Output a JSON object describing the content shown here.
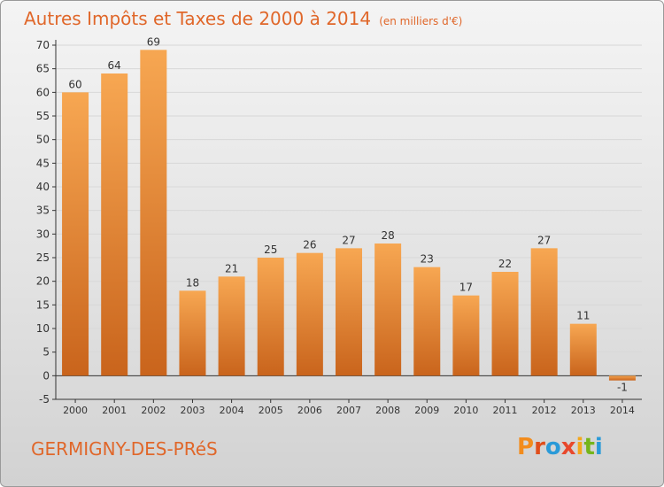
{
  "header": {
    "title": "Autres Impôts et Taxes de 2000 à 2014",
    "unit": "(en milliers d'€)"
  },
  "footer": {
    "place": "GERMIGNY-DES-PRéS",
    "logo": "Proxiti",
    "logo_colors": [
      "#f28c1d",
      "#e04e1b",
      "#2a9ad8",
      "#e8482c",
      "#f4a71c",
      "#75b51b",
      "#2a9ad8"
    ]
  },
  "colors": {
    "title": "#e0672a",
    "bar_light": "#f7a752",
    "bar_dark": "#c9641c",
    "axis": "#333333",
    "grid": "#d8d8d8"
  },
  "chart_data": {
    "type": "bar",
    "title": "Autres Impôts et Taxes de 2000 à 2014",
    "subtitle": "(en milliers d'€)",
    "xlabel": "",
    "ylabel": "",
    "categories": [
      "2000",
      "2001",
      "2002",
      "2003",
      "2004",
      "2005",
      "2006",
      "2007",
      "2008",
      "2009",
      "2010",
      "2011",
      "2012",
      "2013",
      "2014"
    ],
    "values": [
      60,
      64,
      69,
      18,
      21,
      25,
      26,
      27,
      28,
      23,
      17,
      22,
      27,
      11,
      -1
    ],
    "ylim": [
      -5,
      70
    ],
    "yticks": [
      -5,
      0,
      5,
      10,
      15,
      20,
      25,
      30,
      35,
      40,
      45,
      50,
      55,
      60,
      65,
      70
    ],
    "grid": true,
    "data_labels": true
  }
}
